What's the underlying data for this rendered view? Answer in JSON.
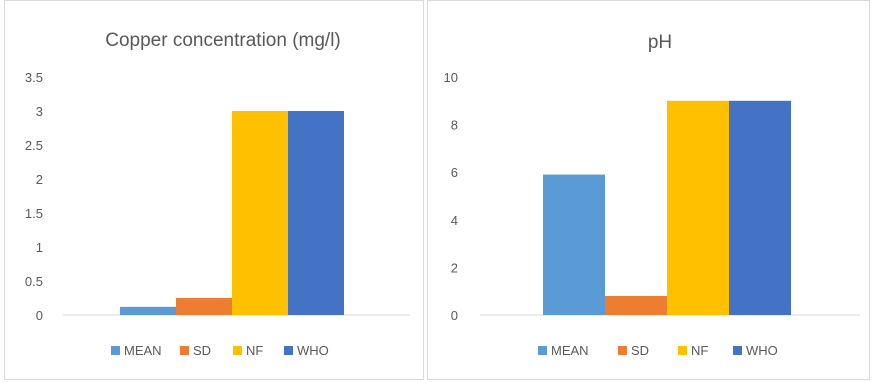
{
  "chart_data": [
    {
      "type": "bar",
      "title": "Copper concentration (mg/l)",
      "categories": [
        ""
      ],
      "series": [
        {
          "name": "MEAN",
          "values": [
            0.12
          ],
          "color": "#5b9bd5"
        },
        {
          "name": "SD",
          "values": [
            0.25
          ],
          "color": "#ed7d31"
        },
        {
          "name": "NF",
          "values": [
            3
          ],
          "color": "#ffc000"
        },
        {
          "name": "WHO",
          "values": [
            3
          ],
          "color": "#4472c4"
        }
      ],
      "ylim": [
        0,
        3.5
      ],
      "yticks": [
        "0",
        "0.5",
        "1",
        "1.5",
        "2",
        "2.5",
        "3",
        "3.5"
      ],
      "grid": false,
      "legend": "bottom"
    },
    {
      "type": "bar",
      "title": "pH",
      "categories": [
        ""
      ],
      "series": [
        {
          "name": "MEAN",
          "values": [
            5.9
          ],
          "color": "#5b9bd5"
        },
        {
          "name": "SD",
          "values": [
            0.8
          ],
          "color": "#ed7d31"
        },
        {
          "name": "NF",
          "values": [
            9
          ],
          "color": "#ffc000"
        },
        {
          "name": "WHO",
          "values": [
            9
          ],
          "color": "#4472c4"
        }
      ],
      "ylim": [
        0,
        10
      ],
      "yticks": [
        "0",
        "2",
        "4",
        "6",
        "8",
        "10"
      ],
      "grid": false,
      "legend": "bottom"
    }
  ]
}
